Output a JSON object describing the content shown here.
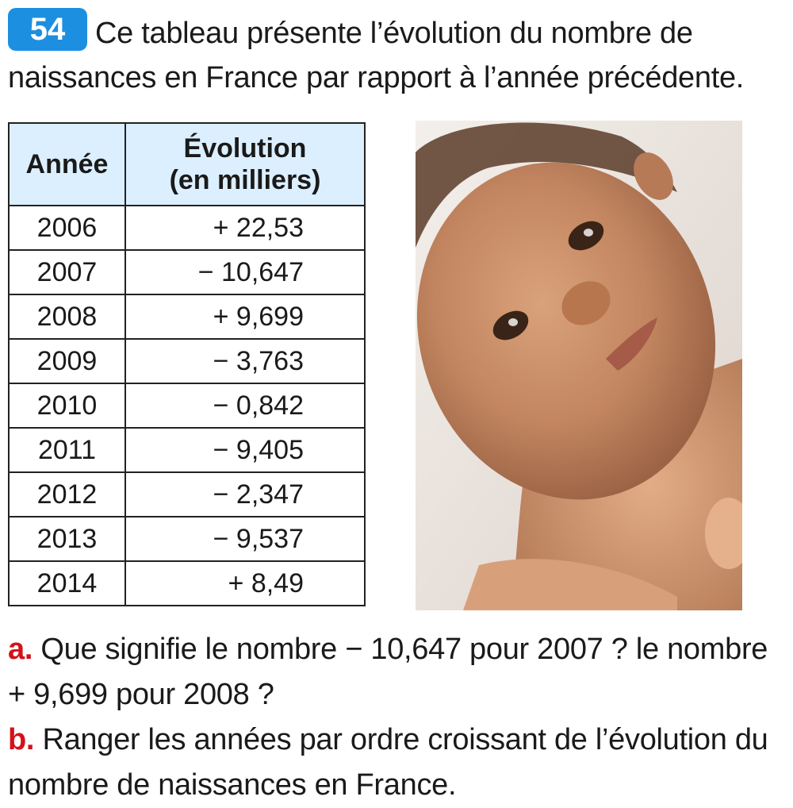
{
  "exercise": {
    "number": "54",
    "intro": "Ce tableau présente l’évolution du nombre de naissances en France par rapport à l’année précédente."
  },
  "table": {
    "headers": [
      "Année",
      "Évolution",
      "(en milliers)"
    ],
    "rows": [
      {
        "year": "2006",
        "value": "+ 22,53"
      },
      {
        "year": "2007",
        "value": "− 10,647"
      },
      {
        "year": "2008",
        "value": "+ 9,699"
      },
      {
        "year": "2009",
        "value": "− 3,763"
      },
      {
        "year": "2010",
        "value": "− 0,842"
      },
      {
        "year": "2011",
        "value": "− 9,405"
      },
      {
        "year": "2012",
        "value": "− 2,347"
      },
      {
        "year": "2013",
        "value": "− 9,537"
      },
      {
        "year": "2014",
        "value": "+ 8,49"
      }
    ]
  },
  "questions": [
    {
      "letter": "a.",
      "text": "Que signifie le nombre − 10,647 pour 2007 ? le nombre + 9,699 pour 2008 ?"
    },
    {
      "letter": "b.",
      "text": "Ranger les années par ordre croissant de l’évolution du nombre de naissances en France."
    }
  ],
  "colors": {
    "badge": "#1d8fe0",
    "header_bg": "#dcefff",
    "question_letter": "#d3121b"
  }
}
